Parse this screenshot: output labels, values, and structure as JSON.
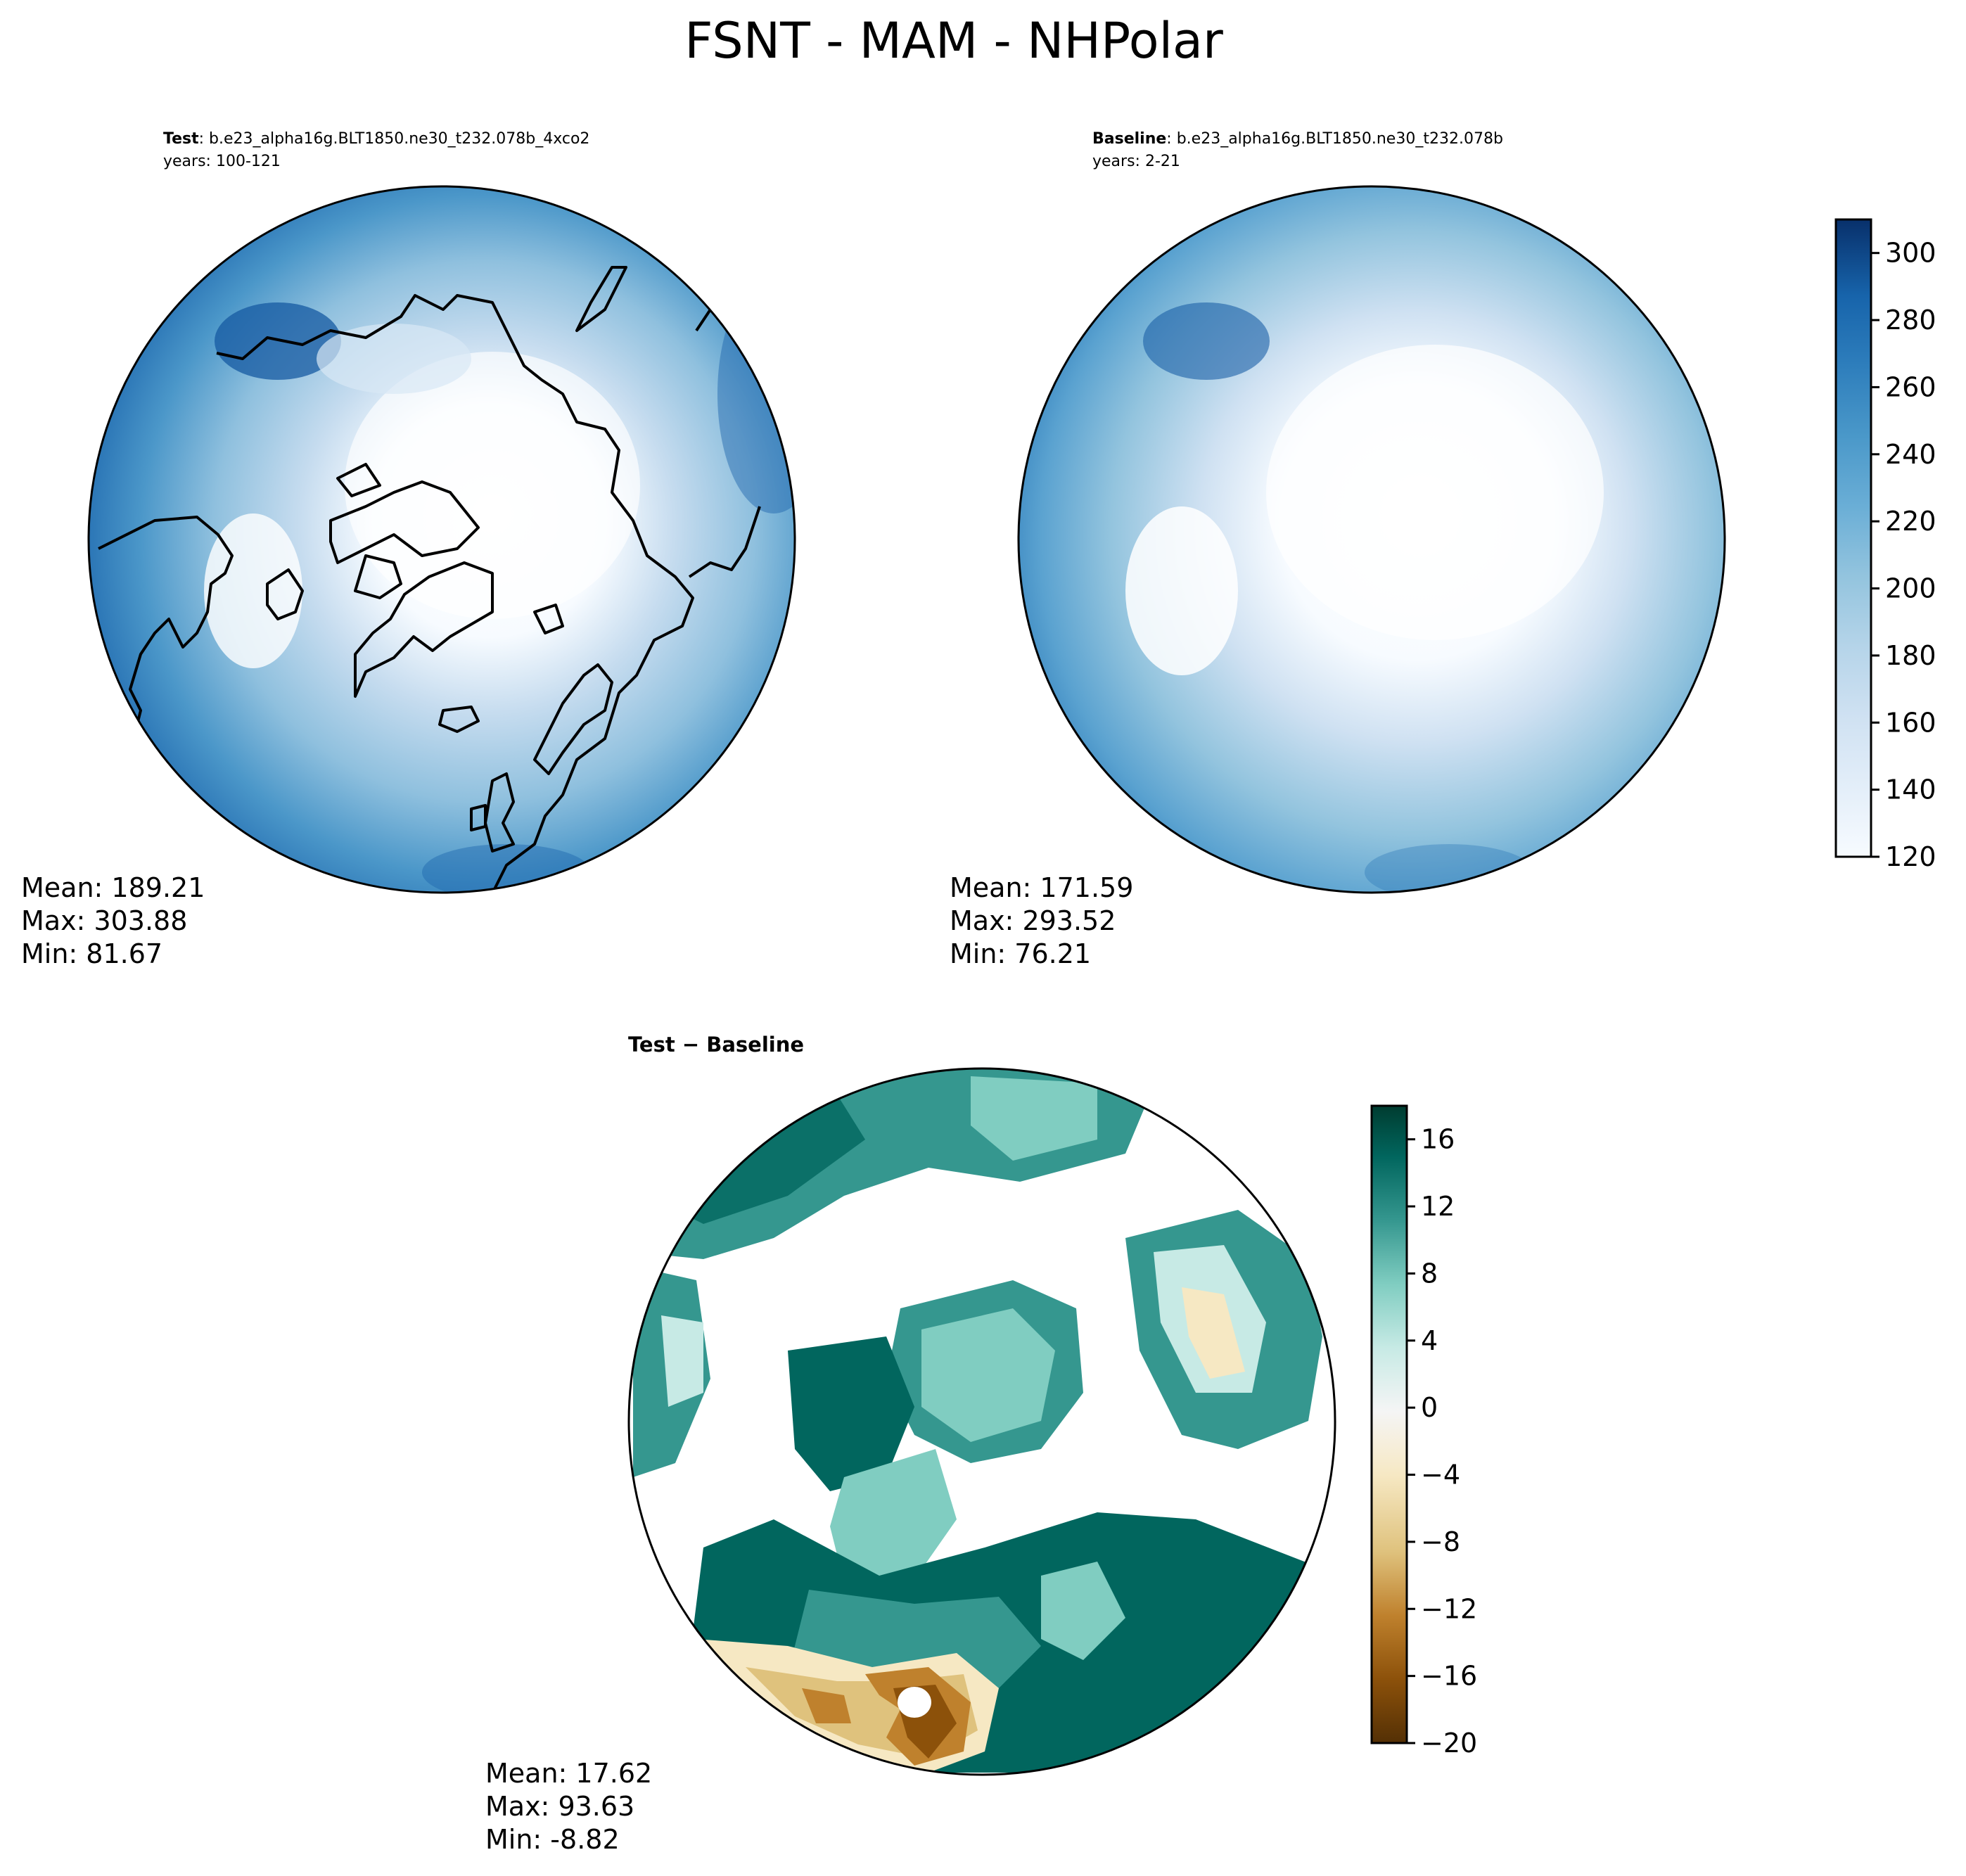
{
  "figure": {
    "title": "FSNT - MAM - NHPolar"
  },
  "panels": [
    {
      "id": "test",
      "header_bold": "Test",
      "header_rest": ": b.e23_alpha16g.BLT1850.ne30_t232.078b_4xco2",
      "years": "years: 100-121",
      "stats": {
        "mean": "Mean: 189.21",
        "max": "Max: 303.88",
        "min": "Min: 81.67"
      }
    },
    {
      "id": "baseline",
      "header_bold": "Baseline",
      "header_rest": ": b.e23_alpha16g.BLT1850.ne30_t232.078b",
      "years": "years: 2-21",
      "stats": {
        "mean": "Mean: 171.59",
        "max": "Max: 293.52",
        "min": "Min: 76.21"
      }
    },
    {
      "id": "diff",
      "header_bold": "Test − Baseline",
      "header_rest": "",
      "years": "",
      "stats": {
        "mean": "Mean: 17.62",
        "max": "Max: 93.63",
        "min": "Min: -8.82"
      }
    }
  ],
  "colorbars": {
    "main": {
      "colormap": "Blues",
      "range": [
        120,
        310
      ],
      "ticks": [
        "120",
        "140",
        "160",
        "180",
        "200",
        "220",
        "240",
        "260",
        "280",
        "300"
      ],
      "tick_values": [
        120,
        140,
        160,
        180,
        200,
        220,
        240,
        260,
        280,
        300
      ],
      "levels": 19,
      "colors": [
        "#f7fbff",
        "#e3eef9",
        "#cfe1f2",
        "#b5d4e9",
        "#93c4de",
        "#6aaed6",
        "#4a98c9",
        "#2e7ebc",
        "#1764ab",
        "#08468b"
      ]
    },
    "diff": {
      "colormap": "BrBG",
      "range": [
        -20,
        18
      ],
      "ticks": [
        "−20",
        "−16",
        "−12",
        "−8",
        "−4",
        "0",
        "4",
        "8",
        "12",
        "16"
      ],
      "tick_values": [
        -20,
        -16,
        -12,
        -8,
        -4,
        0,
        4,
        8,
        12,
        16
      ],
      "levels": 19,
      "colors": [
        "#543005",
        "#8c510a",
        "#bf812d",
        "#dfc27d",
        "#f6e8c3",
        "#f5f5f5",
        "#c7eae5",
        "#80cdc1",
        "#35978f",
        "#01665e",
        "#003c30"
      ]
    }
  }
}
